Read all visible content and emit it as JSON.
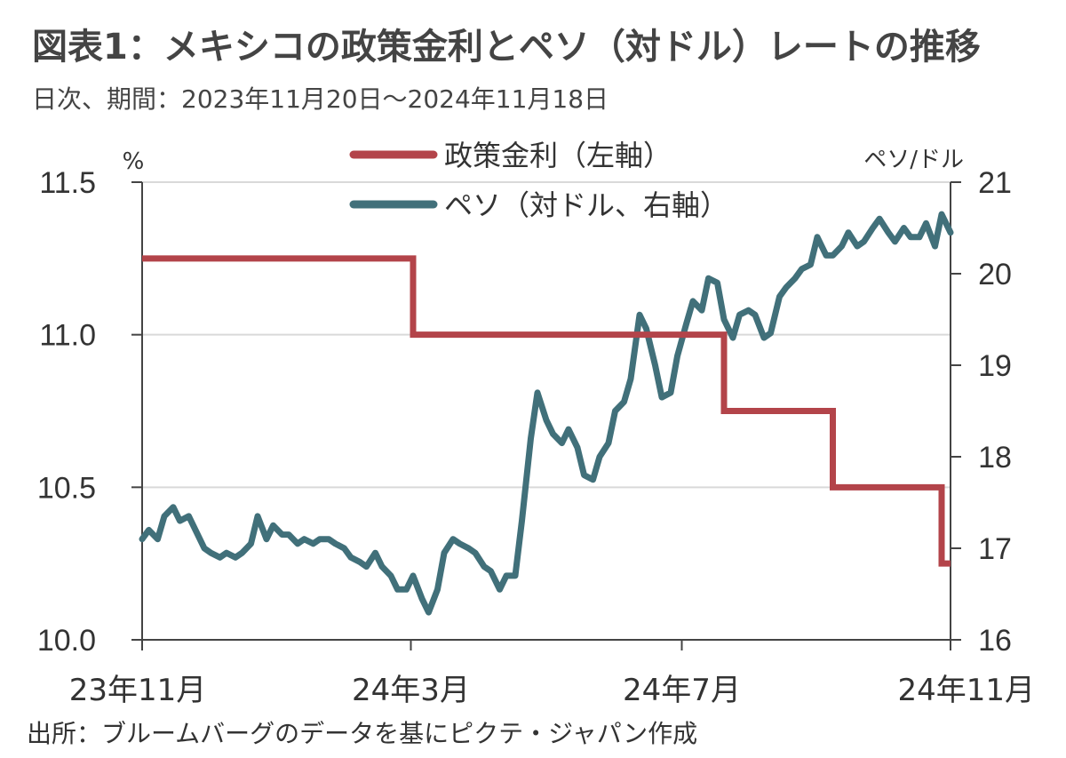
{
  "title": "図表1：メキシコの政策金利とペソ（対ドル）レートの推移",
  "subtitle": "日次、期間：2023年11月20日～2024年11月18日",
  "source": "出所：ブルームバーグのデータを基にピクテ・ジャパン作成",
  "colors": {
    "policy_rate": "#b3444a",
    "peso": "#41707a",
    "grid": "#d9d9d9",
    "axis": "#444444"
  },
  "chart_data": {
    "type": "line",
    "left_axis": {
      "unit": "%",
      "ylim": [
        10.0,
        11.5
      ],
      "ticks": [
        "10.0",
        "10.5",
        "11.0",
        "11.5"
      ]
    },
    "right_axis": {
      "unit": "ペソ/ドル",
      "ylim": [
        16,
        21
      ],
      "ticks": [
        "16",
        "17",
        "18",
        "19",
        "20",
        "21"
      ]
    },
    "x_ticks": [
      "23年11月",
      "24年3月",
      "24年7月",
      "24年11月"
    ],
    "legend": [
      "政策金利（左軸）",
      "ペソ（対ドル、右軸）"
    ],
    "grid": "horizontal",
    "series": [
      {
        "name": "政策金利（左軸）",
        "axis": "left",
        "step": true,
        "x": [
          "2023-11-20",
          "2024-03-21",
          "2024-08-08",
          "2024-09-26",
          "2024-11-14",
          "2024-11-18"
        ],
        "values": [
          11.25,
          11.0,
          10.75,
          10.5,
          10.25,
          10.25
        ]
      },
      {
        "name": "ペソ（対ドル、右軸）",
        "axis": "right",
        "x": [
          "2023-11-20",
          "2023-11-23",
          "2023-11-27",
          "2023-11-30",
          "2023-12-04",
          "2023-12-07",
          "2023-12-11",
          "2023-12-14",
          "2023-12-18",
          "2023-12-21",
          "2023-12-25",
          "2023-12-28",
          "2024-01-01",
          "2024-01-04",
          "2024-01-08",
          "2024-01-11",
          "2024-01-15",
          "2024-01-18",
          "2024-01-22",
          "2024-01-25",
          "2024-01-29",
          "2024-02-01",
          "2024-02-05",
          "2024-02-08",
          "2024-02-12",
          "2024-02-15",
          "2024-02-19",
          "2024-02-22",
          "2024-02-26",
          "2024-02-29",
          "2024-03-04",
          "2024-03-07",
          "2024-03-11",
          "2024-03-14",
          "2024-03-18",
          "2024-03-21",
          "2024-03-25",
          "2024-03-28",
          "2024-04-01",
          "2024-04-04",
          "2024-04-08",
          "2024-04-11",
          "2024-04-15",
          "2024-04-18",
          "2024-04-22",
          "2024-04-25",
          "2024-04-29",
          "2024-05-02",
          "2024-05-06",
          "2024-05-09",
          "2024-05-13",
          "2024-05-16",
          "2024-05-20",
          "2024-05-23",
          "2024-05-27",
          "2024-05-30",
          "2024-06-03",
          "2024-06-06",
          "2024-06-10",
          "2024-06-13",
          "2024-06-17",
          "2024-06-20",
          "2024-06-24",
          "2024-06-27",
          "2024-07-01",
          "2024-07-04",
          "2024-07-08",
          "2024-07-11",
          "2024-07-15",
          "2024-07-18",
          "2024-07-22",
          "2024-07-25",
          "2024-07-29",
          "2024-08-01",
          "2024-08-05",
          "2024-08-08",
          "2024-08-12",
          "2024-08-15",
          "2024-08-19",
          "2024-08-22",
          "2024-08-26",
          "2024-08-29",
          "2024-09-02",
          "2024-09-05",
          "2024-09-09",
          "2024-09-12",
          "2024-09-16",
          "2024-09-19",
          "2024-09-23",
          "2024-09-26",
          "2024-09-30",
          "2024-10-03",
          "2024-10-07",
          "2024-10-10",
          "2024-10-14",
          "2024-10-17",
          "2024-10-21",
          "2024-10-24",
          "2024-10-28",
          "2024-10-31",
          "2024-11-04",
          "2024-11-07",
          "2024-11-11",
          "2024-11-14",
          "2024-11-18"
        ],
        "values": [
          17.1,
          17.2,
          17.1,
          17.35,
          17.45,
          17.3,
          17.35,
          17.2,
          17.0,
          16.95,
          16.9,
          16.95,
          16.9,
          16.95,
          17.05,
          17.35,
          17.1,
          17.25,
          17.15,
          17.15,
          17.05,
          17.1,
          17.05,
          17.1,
          17.1,
          17.05,
          17.0,
          16.9,
          16.85,
          16.8,
          16.95,
          16.8,
          16.7,
          16.55,
          16.55,
          16.7,
          16.45,
          16.3,
          16.55,
          16.95,
          17.1,
          17.05,
          17.0,
          16.95,
          16.8,
          16.75,
          16.55,
          16.7,
          16.7,
          17.3,
          18.2,
          18.7,
          18.4,
          18.25,
          18.15,
          18.3,
          18.1,
          17.8,
          17.75,
          18.0,
          18.15,
          18.5,
          18.6,
          18.85,
          19.55,
          19.4,
          19.0,
          18.65,
          18.7,
          19.1,
          19.45,
          19.7,
          19.6,
          19.95,
          19.9,
          19.5,
          19.3,
          19.55,
          19.6,
          19.55,
          19.3,
          19.35,
          19.75,
          19.85,
          19.95,
          20.05,
          20.1,
          20.4,
          20.2,
          20.2,
          20.3,
          20.45,
          20.3,
          20.35,
          20.5,
          20.6,
          20.45,
          20.35,
          20.5,
          20.4,
          20.4,
          20.55,
          20.3,
          20.65,
          20.45
        ]
      }
    ]
  }
}
